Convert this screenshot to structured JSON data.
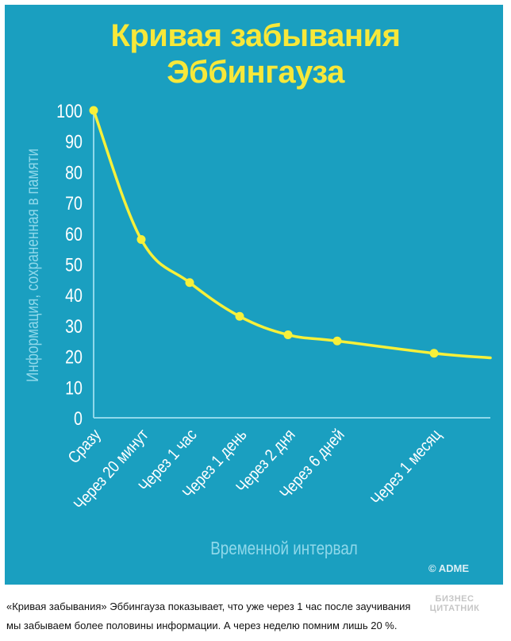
{
  "chart": {
    "title_line1": "Кривая забывания",
    "title_line2": "Эббингауза",
    "copyright": "© ADME"
  },
  "chart_data": {
    "type": "line",
    "title": "Кривая забывания Эббингауза",
    "xlabel": "Временной интервал",
    "ylabel": "Информация, сохраненная в памяти",
    "ylim": [
      0,
      100
    ],
    "yticks": [
      0,
      10,
      20,
      30,
      40,
      50,
      60,
      70,
      80,
      90,
      100
    ],
    "grid": false,
    "categories": [
      "Сразу",
      "Через 20 минут",
      "Через 1 час",
      "Через 1 день",
      "Через 2 дня",
      "Через 6 дней",
      "Через 1 месяц"
    ],
    "series": [
      {
        "values": [
          100,
          58,
          44,
          33,
          27,
          25,
          21
        ]
      }
    ],
    "colors": {
      "background": "#1a9fc0",
      "line": "#f7f03a",
      "axis": "#8fd8ea",
      "tick_text": "#ffffff",
      "axis_title": "#8fd8ea"
    }
  },
  "caption": {
    "line1": "«Кривая забывания» Эббингауза показывает, что уже через 1 час после заучивания",
    "line2": "мы забываем более половины информации. А через неделю помним лишь 20 %."
  },
  "watermark": {
    "line1": "БИЗНЕС",
    "line2": "ЦИТАТНИК"
  }
}
